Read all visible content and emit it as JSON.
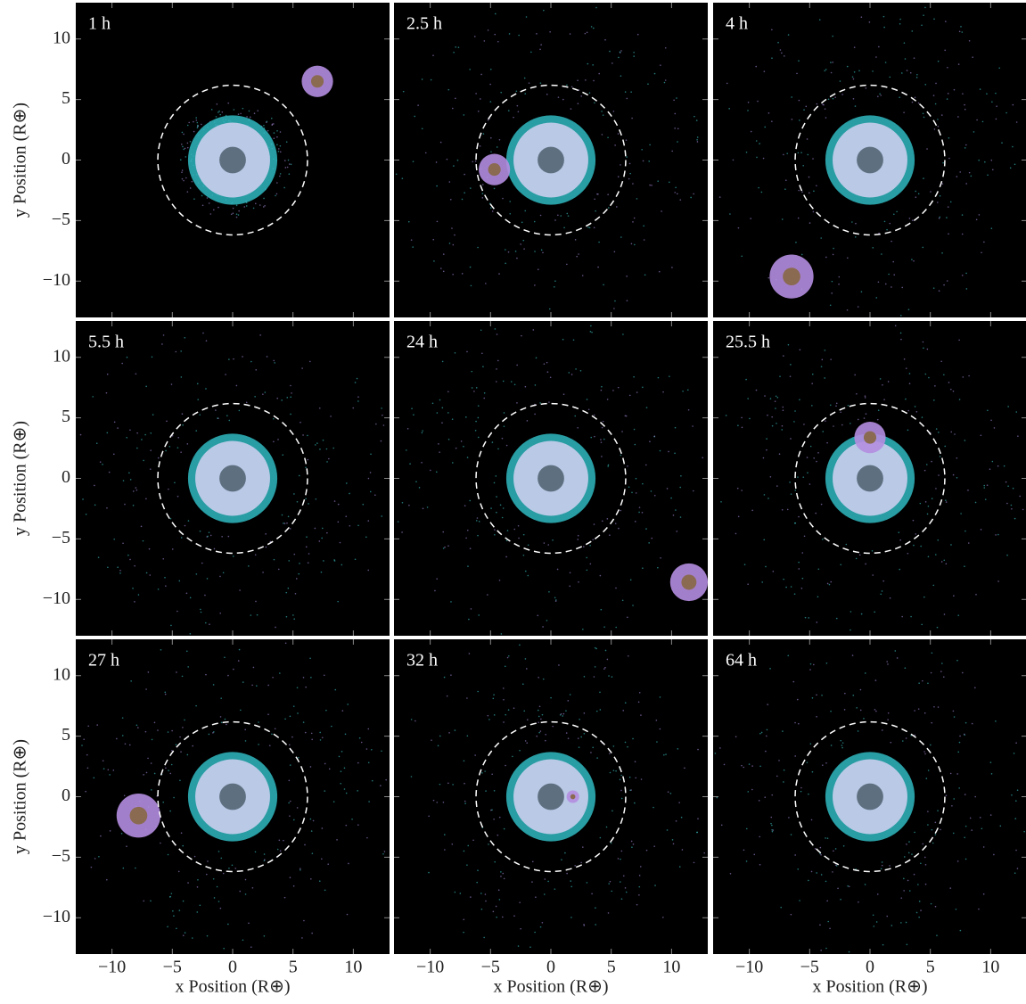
{
  "chart_data": {
    "type": "image-grid",
    "panels": [
      {
        "label": "1 h"
      },
      {
        "label": "2.5 h"
      },
      {
        "label": "4 h"
      },
      {
        "label": "5.5 h"
      },
      {
        "label": "24 h"
      },
      {
        "label": "25.5 h"
      },
      {
        "label": "27 h"
      },
      {
        "label": "32 h"
      },
      {
        "label": "64 h"
      }
    ],
    "xlabel": "x Position (R⊕)",
    "ylabel": "y Position (R⊕)",
    "xlim": [
      -13,
      13
    ],
    "ylim": [
      -13,
      13
    ],
    "xticks": [
      {
        "value": -10,
        "label": "−10"
      },
      {
        "value": -5,
        "label": "−5"
      },
      0,
      5,
      10
    ],
    "yticks": [
      {
        "value": -10,
        "label": "−10"
      },
      {
        "value": -5,
        "label": "−5"
      },
      0,
      5,
      10
    ]
  }
}
